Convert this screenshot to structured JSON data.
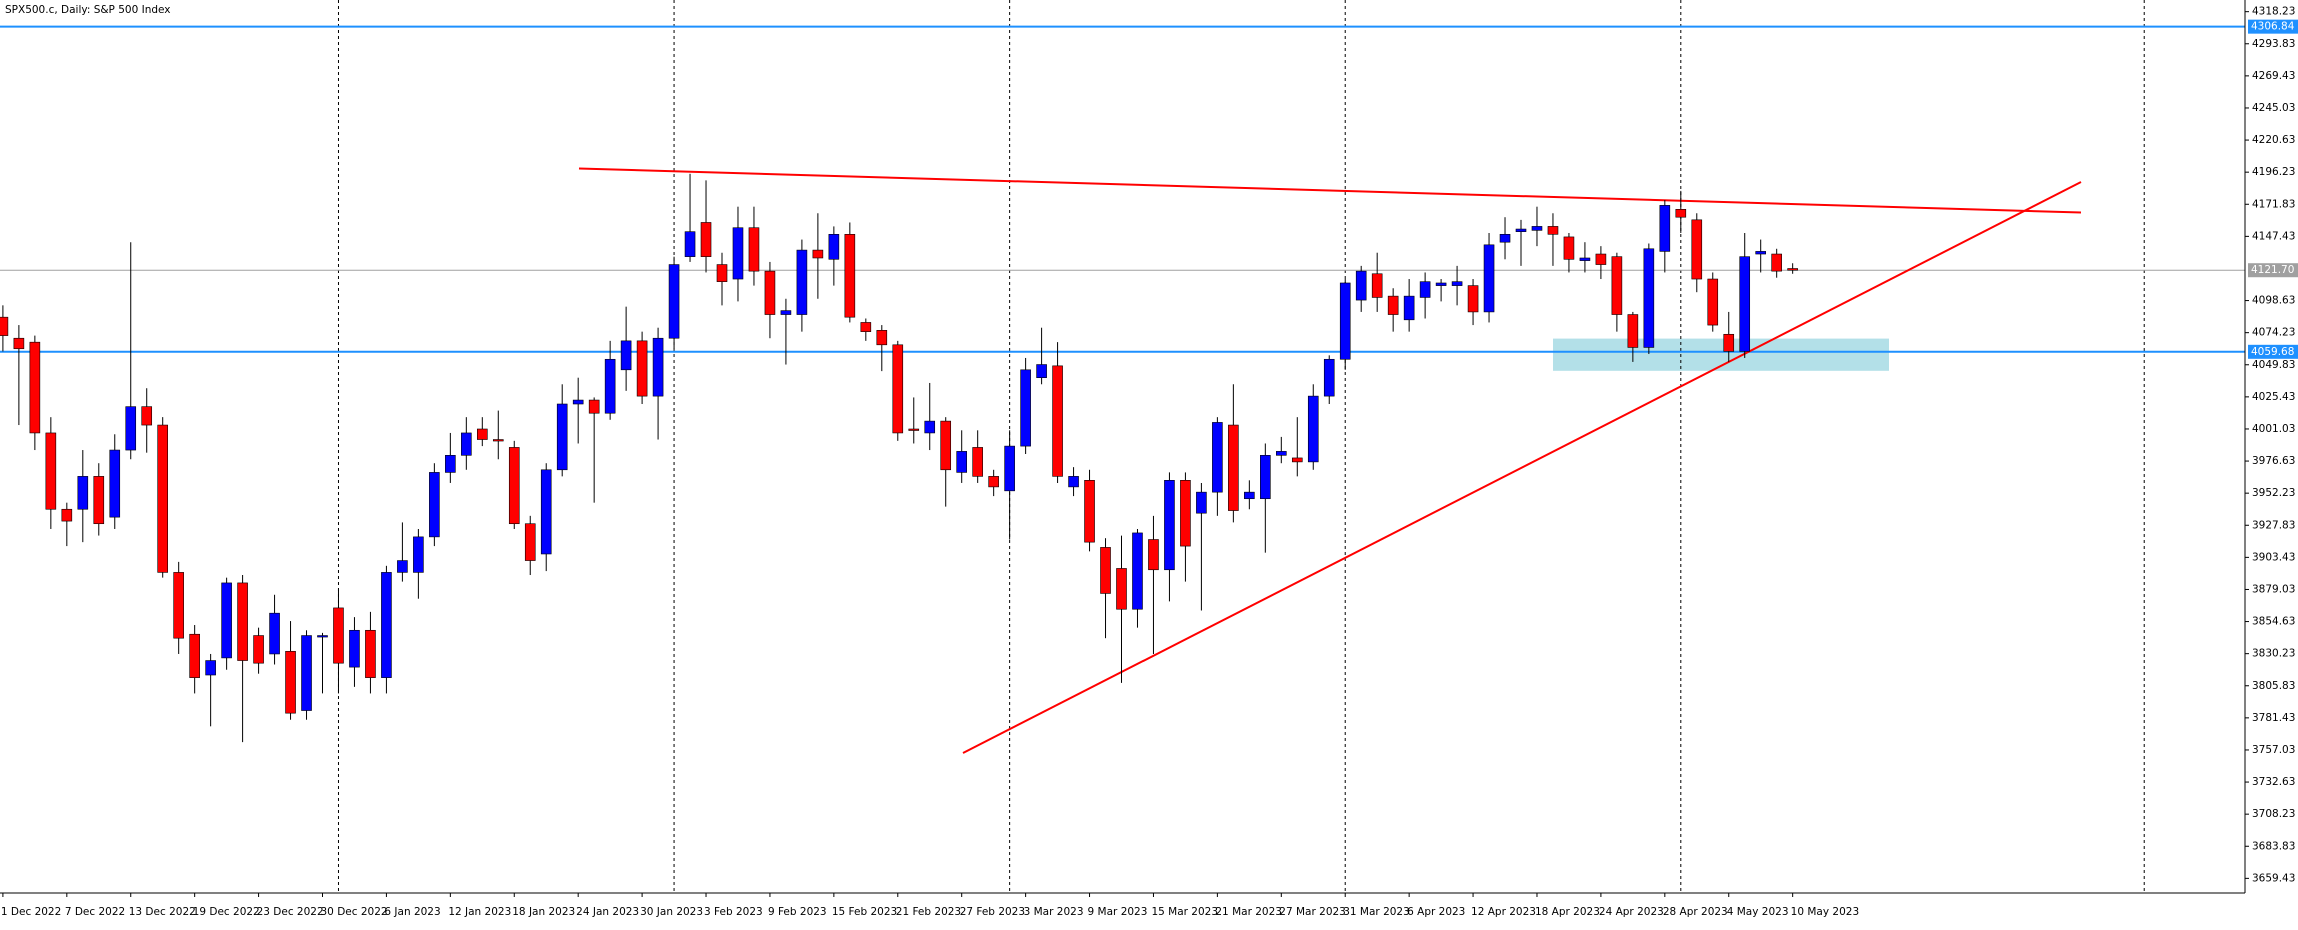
{
  "chart_data": {
    "type": "candlestick",
    "title": "SPX500.c, Daily:  S&P 500 Index",
    "categories": [
      "1 Dec 2022",
      null,
      null,
      null,
      "7 Dec 2022",
      null,
      null,
      null,
      "13 Dec 2022",
      null,
      null,
      null,
      "19 Dec 2022",
      null,
      null,
      null,
      "23 Dec 2022",
      null,
      null,
      null,
      "30 Dec 2022",
      null,
      null,
      null,
      "6 Jan 2023",
      null,
      null,
      null,
      "12 Jan 2023",
      null,
      null,
      null,
      "18 Jan 2023",
      null,
      null,
      null,
      "24 Jan 2023",
      null,
      null,
      null,
      "30 Jan 2023",
      null,
      null,
      null,
      "3 Feb 2023",
      null,
      null,
      null,
      "9 Feb 2023",
      null,
      null,
      null,
      "15 Feb 2023",
      null,
      null,
      null,
      "21 Feb 2023",
      null,
      null,
      null,
      "27 Feb 2023",
      null,
      null,
      null,
      "3 Mar 2023",
      null,
      null,
      null,
      "9 Mar 2023",
      null,
      null,
      null,
      "15 Mar 2023",
      null,
      null,
      null,
      "21 Mar 2023",
      null,
      null,
      null,
      "27 Mar 2023",
      null,
      null,
      null,
      "31 Mar 2023",
      null,
      null,
      null,
      "6 Apr 2023",
      null,
      null,
      null,
      "12 Apr 2023",
      null,
      null,
      null,
      "18 Apr 2023",
      null,
      null,
      null,
      "24 Apr 2023",
      null,
      null,
      null,
      "28 Apr 2023",
      null,
      null,
      null,
      "4 May 2023",
      null,
      null,
      null,
      "10 May 2023"
    ],
    "open": [
      4086,
      4070,
      4067,
      3998,
      3940,
      3940,
      3965,
      3934,
      3985,
      4018,
      4004,
      3892,
      3845,
      3814,
      3827,
      3884,
      3844,
      3830,
      3832,
      3787,
      3843,
      3865,
      3820,
      3848,
      3812,
      3892,
      3892,
      3919,
      3968,
      3981,
      4001,
      3993,
      3987,
      3929,
      3906,
      3970,
      4020,
      4023,
      4013,
      4046,
      4068,
      4026,
      4070,
      4132,
      4158,
      4126,
      4115,
      4154,
      4121,
      4088,
      4088,
      4137,
      4130,
      4149,
      4082,
      4076,
      4065,
      4001,
      3998,
      4007,
      3968,
      3987,
      3965,
      3954,
      3988,
      4040,
      4049,
      3957,
      3962,
      3911,
      3895,
      3864,
      3917,
      3894,
      3962,
      3937,
      3953,
      4004,
      3948,
      3948,
      3981,
      3979,
      3976,
      4026,
      4054,
      4099,
      4119,
      4102,
      4084,
      4101,
      4110,
      4110,
      4110,
      4090,
      4143,
      4151,
      4152,
      4155,
      4147,
      4129,
      4134,
      4132,
      4088,
      4063,
      4136,
      4168,
      4160,
      4115,
      4073,
      4060,
      4134,
      4134,
      4123
    ],
    "high": [
      4095,
      4080,
      4072,
      4010,
      3945,
      3985,
      3975,
      3997,
      4143,
      4032,
      4010,
      3900,
      3852,
      3830,
      3888,
      3890,
      3850,
      3875,
      3855,
      3848,
      3846,
      3880,
      3858,
      3862,
      3897,
      3930,
      3925,
      3975,
      3998,
      4010,
      4010,
      4015,
      3992,
      3935,
      3975,
      4035,
      4040,
      4025,
      4068,
      4094,
      4075,
      4078,
      4132,
      4195,
      4190,
      4135,
      4170,
      4170,
      4128,
      4100,
      4145,
      4165,
      4155,
      4158,
      4085,
      4080,
      4068,
      4025,
      4036,
      4010,
      4000,
      4000,
      3970,
      4000,
      4055,
      4078,
      4067,
      3972,
      3970,
      3918,
      3920,
      3925,
      3935,
      3968,
      3968,
      3960,
      4010,
      4035,
      3962,
      3990,
      3995,
      4010,
      4035,
      4057,
      4115,
      4125,
      4135,
      4108,
      4115,
      4120,
      4115,
      4125,
      4115,
      4150,
      4162,
      4160,
      4170,
      4165,
      4150,
      4143,
      4140,
      4135,
      4090,
      4142,
      4175,
      4182,
      4165,
      4120,
      4090,
      4150,
      4145,
      4138,
      4127
    ],
    "low": [
      4060,
      4004,
      3985,
      3925,
      3912,
      3915,
      3920,
      3925,
      3978,
      3983,
      3888,
      3830,
      3800,
      3775,
      3818,
      3763,
      3815,
      3822,
      3780,
      3780,
      3800,
      3800,
      3805,
      3800,
      3800,
      3885,
      3872,
      3912,
      3960,
      3970,
      3988,
      3978,
      3925,
      3890,
      3893,
      3965,
      3990,
      3945,
      4008,
      4030,
      4020,
      3993,
      4062,
      4128,
      4120,
      4095,
      4098,
      4110,
      4070,
      4050,
      4075,
      4100,
      4110,
      4082,
      4068,
      4045,
      3992,
      3990,
      3985,
      3942,
      3960,
      3960,
      3950,
      3917,
      3982,
      4035,
      3960,
      3950,
      3908,
      3842,
      3808,
      3850,
      3830,
      3870,
      3885,
      3863,
      3935,
      3930,
      3940,
      3907,
      3975,
      3965,
      3970,
      4020,
      4046,
      4090,
      4090,
      4075,
      4075,
      4085,
      4098,
      4095,
      4080,
      4082,
      4130,
      4125,
      4140,
      4125,
      4120,
      4120,
      4115,
      4075,
      4052,
      4058,
      4120,
      4150,
      4105,
      4075,
      4052,
      4055,
      4120,
      4116,
      4119
    ],
    "close": [
      4072,
      4062,
      3998,
      3940,
      3931,
      3965,
      3929,
      3985,
      4018,
      4004,
      3892,
      3842,
      3812,
      3825,
      3884,
      3825,
      3823,
      3861,
      3785,
      3844,
      3844,
      3823,
      3848,
      3812,
      3892,
      3901,
      3919,
      3968,
      3981,
      3998,
      3993,
      3992,
      3929,
      3901,
      3970,
      4020,
      4023,
      4013,
      4054,
      4068,
      4026,
      4070,
      4126,
      4151,
      4132,
      4113,
      4154,
      4121,
      4088,
      4091,
      4137,
      4131,
      4149,
      4086,
      4075,
      4065,
      3998,
      4000,
      4007,
      3970,
      3984,
      3965,
      3957,
      3988,
      4046,
      4050,
      3965,
      3965,
      3915,
      3876,
      3864,
      3922,
      3894,
      3962,
      3912,
      3953,
      4006,
      3939,
      3953,
      3981,
      3984,
      3976,
      4026,
      4054,
      4112,
      4121,
      4101,
      4088,
      4102,
      4113,
      4112,
      4113,
      4090,
      4141,
      4149,
      4153,
      4155,
      4149,
      4130,
      4131,
      4126,
      4088,
      4063,
      4138,
      4171,
      4162,
      4115,
      4080,
      4060,
      4132,
      4136,
      4121,
      4121.7
    ],
    "up_color": "#0000ff",
    "down_color": "#ff0000",
    "ylim": [
      3648.3,
      4327.1
    ],
    "yticks": [
      4318.23,
      4293.83,
      4269.43,
      4245.03,
      4220.63,
      4196.23,
      4171.83,
      4147.43,
      4098.63,
      4074.23,
      4049.83,
      4025.43,
      4001.03,
      3976.63,
      3952.23,
      3927.83,
      3903.43,
      3879.03,
      3854.63,
      3830.23,
      3805.83,
      3781.43,
      3757.03,
      3732.63,
      3708.23,
      3683.83,
      3659.43
    ],
    "levels": [
      {
        "value": 4306.84,
        "color": "#1e90ff"
      },
      {
        "value": 4059.68,
        "color": "#1e90ff"
      }
    ],
    "last_price": {
      "value": 4121.7,
      "label": "4121.70",
      "color": "#a0a0a0"
    }
  }
}
